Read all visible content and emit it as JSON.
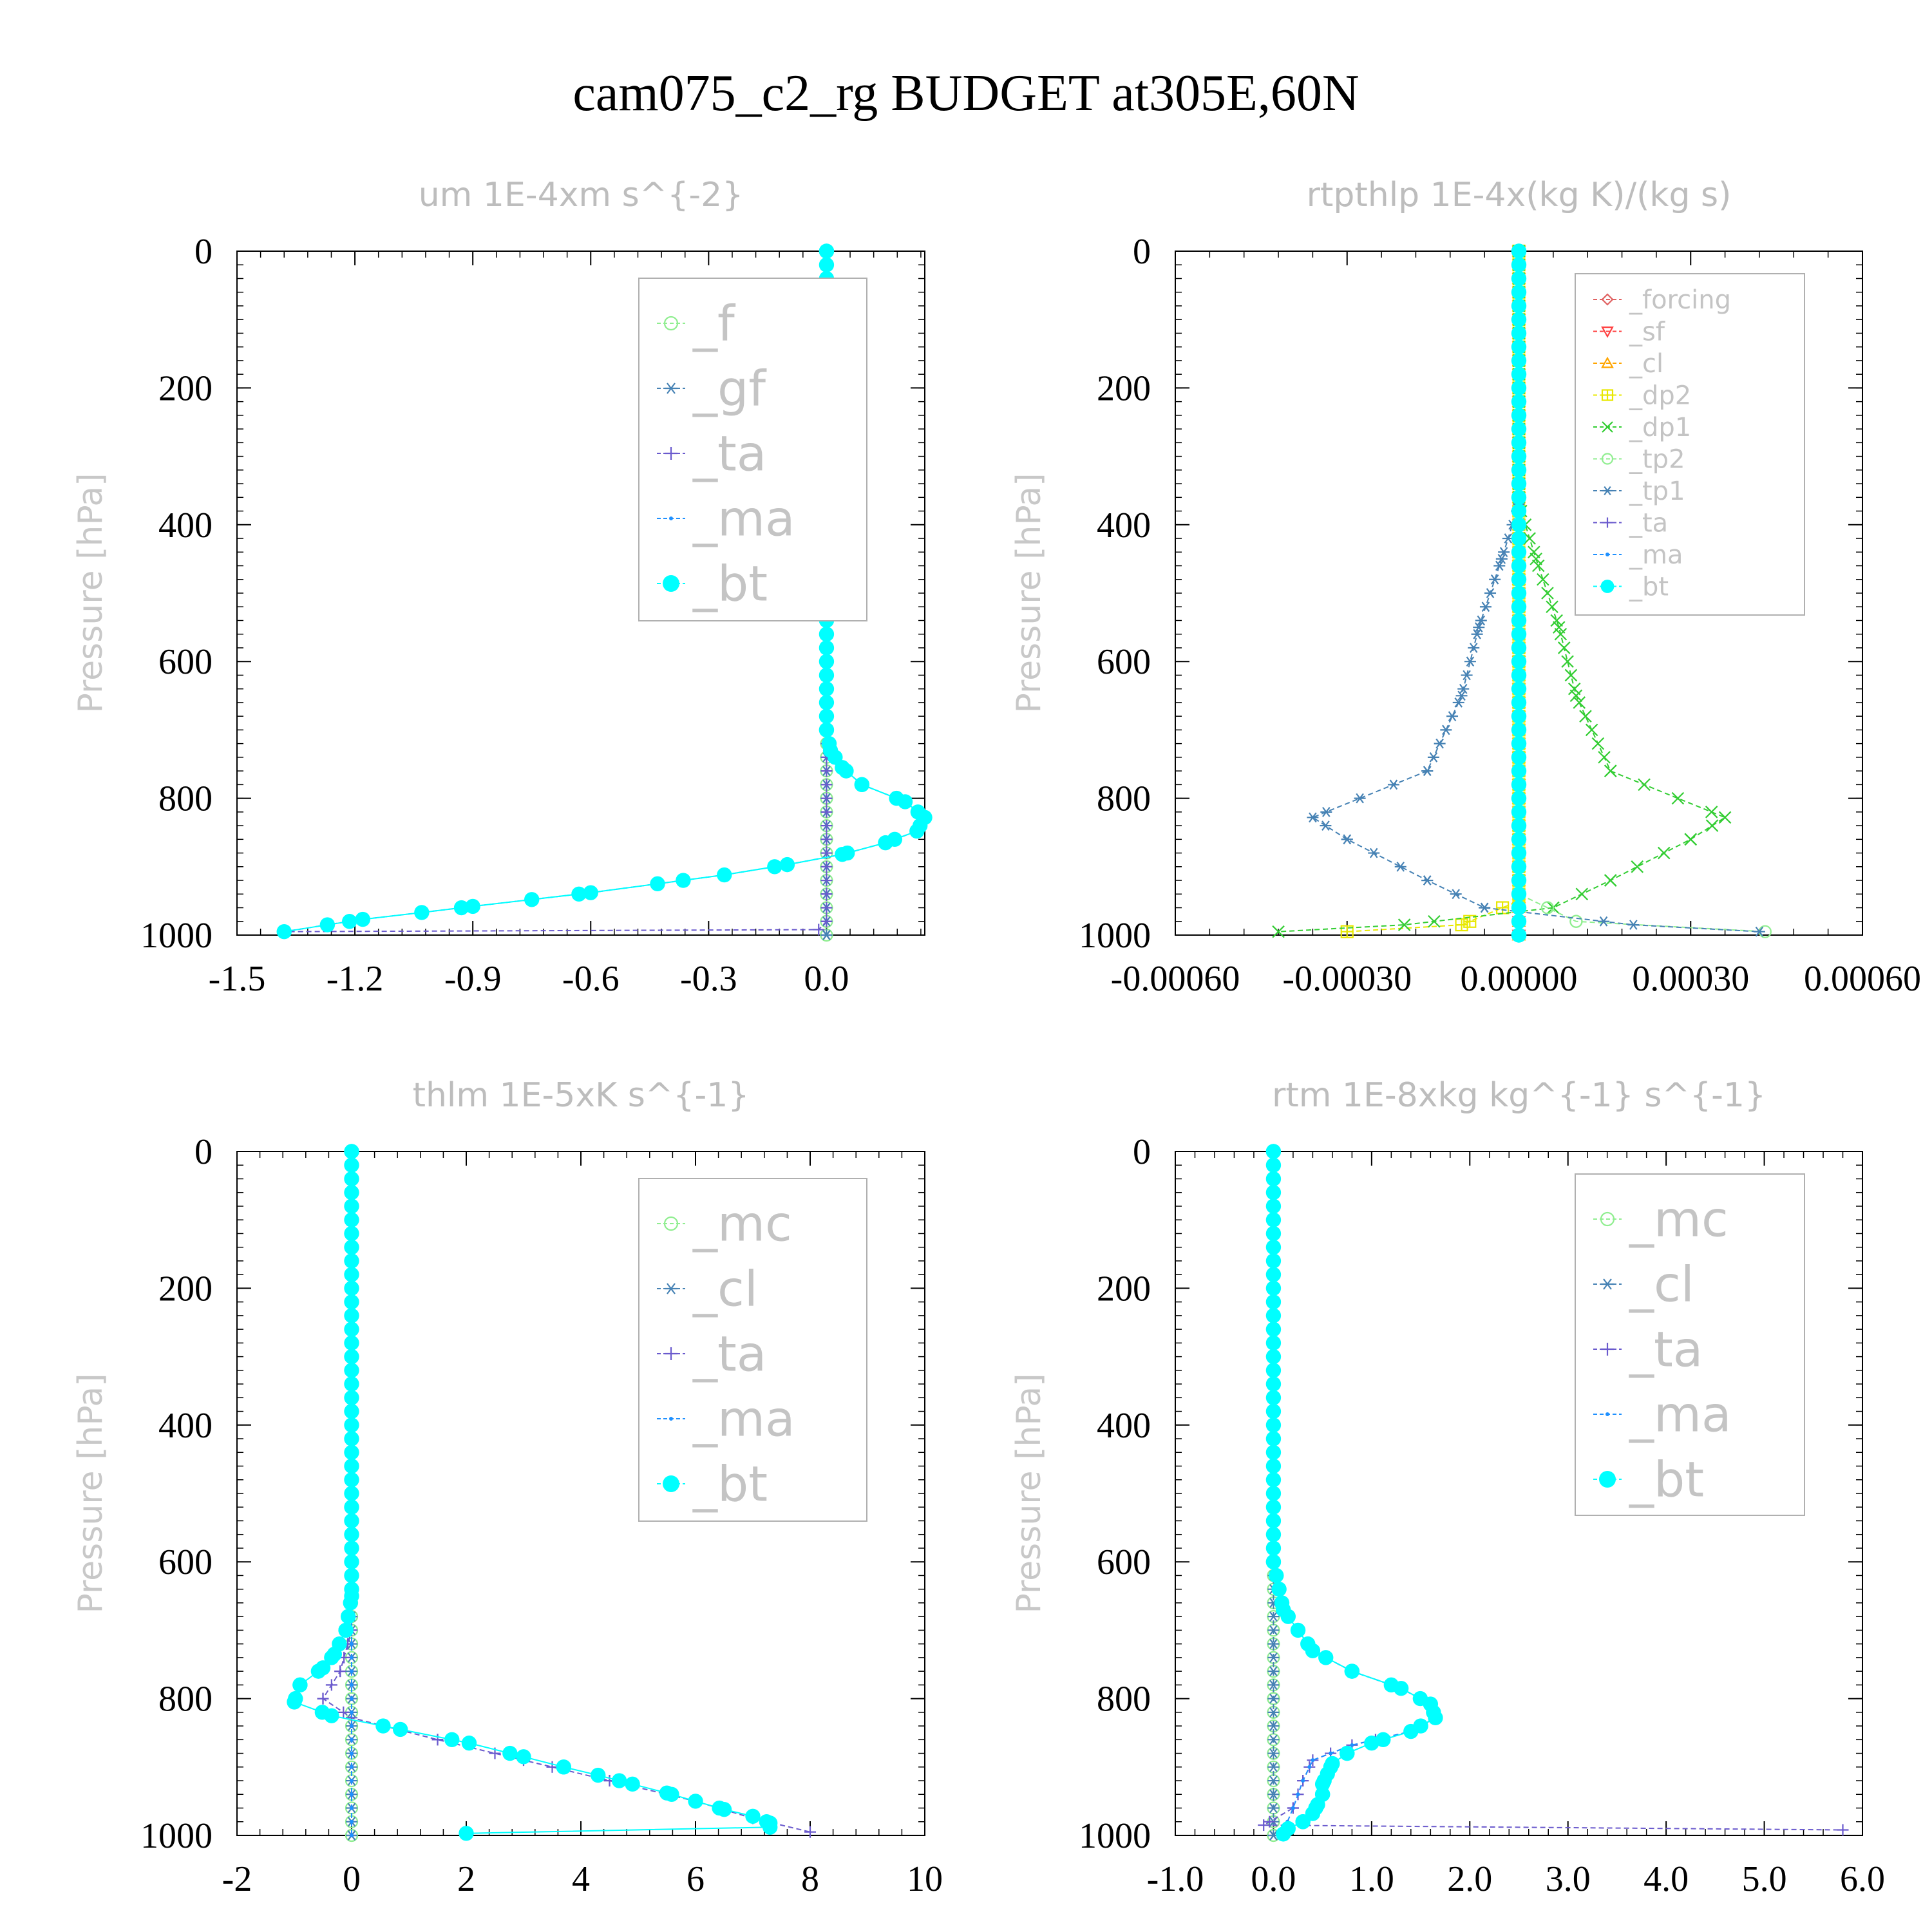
{
  "title": "cam075_c2_rg  BUDGET at305E,60N",
  "chart_data": [
    {
      "type": "line",
      "title": "um   1E-4xm s^{-2}",
      "ylabel": "Pressure [hPa]",
      "xlim": [
        -1.5,
        0.25
      ],
      "ylim": [
        1000,
        0
      ],
      "xticks": [
        "-1.5",
        "-1.2",
        "-0.9",
        "-0.6",
        "-0.3",
        "0.0"
      ],
      "xtick_values": [
        -1.5,
        -1.2,
        -0.9,
        -0.6,
        -0.3,
        0.0
      ],
      "yticks": [
        "0",
        "200",
        "400",
        "600",
        "800",
        "1000"
      ],
      "ytick_values": [
        0,
        200,
        400,
        600,
        800,
        1000
      ],
      "legend_position": "top-right",
      "series": [
        {
          "name": "_f",
          "color": "#90ee90",
          "marker": "circle",
          "points": [
            [
              0,
              0
            ],
            [
              0,
              200
            ],
            [
              0,
              400
            ],
            [
              0,
              600
            ],
            [
              0,
              800
            ],
            [
              0,
              1000
            ]
          ]
        },
        {
          "name": "_gf",
          "color": "#4682b4",
          "marker": "asterisk",
          "points": [
            [
              0,
              0
            ],
            [
              0,
              200
            ],
            [
              0,
              400
            ],
            [
              0,
              600
            ],
            [
              0,
              800
            ],
            [
              0,
              1000
            ]
          ]
        },
        {
          "name": "_ta",
          "color": "#6a5acd",
          "marker": "plus",
          "points": [
            [
              0,
              0
            ],
            [
              0,
              980
            ],
            [
              -0.02,
              992
            ],
            [
              -1.38,
              995
            ]
          ]
        },
        {
          "name": "_ma",
          "color": "#1e90ff",
          "marker": "dot",
          "points": [
            [
              0,
              0
            ],
            [
              0,
              700
            ],
            [
              0.01,
              730
            ],
            [
              0.04,
              755
            ],
            [
              0.09,
              780
            ],
            [
              0.2,
              805
            ],
            [
              0.25,
              828
            ],
            [
              0.23,
              848
            ],
            [
              0.15,
              865
            ],
            [
              0.04,
              882
            ],
            [
              -0.1,
              897
            ],
            [
              -0.26,
              912
            ],
            [
              -0.43,
              925
            ],
            [
              -0.6,
              938
            ],
            [
              -0.75,
              948
            ],
            [
              -0.9,
              958
            ],
            [
              -1.03,
              967
            ],
            [
              -1.18,
              977
            ],
            [
              -1.27,
              985
            ],
            [
              -1.38,
              995
            ]
          ]
        },
        {
          "name": "_bt",
          "color": "#00ffff",
          "marker": "filled-circle",
          "points": [
            [
              0,
              0
            ],
            [
              0,
              700
            ],
            [
              0.01,
              730
            ],
            [
              0.04,
              755
            ],
            [
              0.09,
              780
            ],
            [
              0.2,
              805
            ],
            [
              0.25,
              828
            ],
            [
              0.23,
              848
            ],
            [
              0.15,
              865
            ],
            [
              0.04,
              882
            ],
            [
              -0.1,
              897
            ],
            [
              -0.26,
              912
            ],
            [
              -0.43,
              925
            ],
            [
              -0.6,
              938
            ],
            [
              -0.75,
              948
            ],
            [
              -0.9,
              958
            ],
            [
              -1.03,
              967
            ],
            [
              -1.18,
              977
            ],
            [
              -1.27,
              985
            ],
            [
              -1.38,
              995
            ]
          ]
        }
      ]
    },
    {
      "type": "line",
      "title": "rtpthlp   1E-4x(kg K)/(kg s)",
      "ylabel": "Pressure [hPa]",
      "xlim": [
        -0.0006,
        0.0006
      ],
      "ylim": [
        1000,
        0
      ],
      "xticks": [
        "-0.00060",
        "-0.00030",
        "0.00000",
        "0.00030",
        "0.00060"
      ],
      "xtick_values": [
        -0.0006,
        -0.0003,
        0.0,
        0.0003,
        0.0006
      ],
      "yticks": [
        "0",
        "200",
        "400",
        "600",
        "800",
        "1000"
      ],
      "ytick_values": [
        0,
        200,
        400,
        600,
        800,
        1000
      ],
      "legend_position": "top-right",
      "series": [
        {
          "name": "_forcing",
          "color": "#e06060",
          "marker": "diamond",
          "points": [
            [
              0,
              0
            ],
            [
              0,
              1000
            ]
          ]
        },
        {
          "name": "_sf",
          "color": "#ff4040",
          "marker": "triangle-down",
          "points": [
            [
              0,
              0
            ],
            [
              0,
              1000
            ]
          ]
        },
        {
          "name": "_cl",
          "color": "#ffa500",
          "marker": "triangle",
          "points": [
            [
              0,
              0
            ],
            [
              0,
              1000
            ]
          ]
        },
        {
          "name": "_dp2",
          "color": "#e8e800",
          "marker": "square-plus",
          "points": [
            [
              0,
              0
            ],
            [
              0,
              950
            ],
            [
              -0.0001,
              985
            ],
            [
              -0.0003,
              995
            ]
          ]
        },
        {
          "name": "_dp1",
          "color": "#32cd32",
          "marker": "x",
          "points": [
            [
              0,
              0
            ],
            [
              0,
              370
            ],
            [
              3e-05,
              450
            ],
            [
              7e-05,
              550
            ],
            [
              0.0001,
              650
            ],
            [
              0.00016,
              760
            ],
            [
              0.00036,
              828
            ],
            [
              0.0003,
              860
            ],
            [
              0.00016,
              920
            ],
            [
              6e-05,
              960
            ],
            [
              -0.0002,
              985
            ],
            [
              -0.00042,
              995
            ]
          ]
        },
        {
          "name": "_tp2",
          "color": "#90ee90",
          "marker": "circle",
          "points": [
            [
              0,
              0
            ],
            [
              0,
              940
            ],
            [
              0.0001,
              980
            ],
            [
              0.00043,
              995
            ]
          ]
        },
        {
          "name": "_tp1",
          "color": "#4682b4",
          "marker": "asterisk",
          "points": [
            [
              0,
              0
            ],
            [
              0,
              370
            ],
            [
              -3e-05,
              450
            ],
            [
              -7e-05,
              550
            ],
            [
              -0.0001,
              650
            ],
            [
              -0.00016,
              760
            ],
            [
              -0.00036,
              828
            ],
            [
              -0.0003,
              860
            ],
            [
              -0.00016,
              920
            ],
            [
              -6e-05,
              960
            ],
            [
              0.0002,
              985
            ],
            [
              0.00042,
              995
            ]
          ]
        },
        {
          "name": "_ta",
          "color": "#6a5acd",
          "marker": "plus",
          "points": [
            [
              0,
              0
            ],
            [
              0,
              1000
            ]
          ]
        },
        {
          "name": "_ma",
          "color": "#1e90ff",
          "marker": "dot",
          "points": [
            [
              0,
              0
            ],
            [
              0,
              1000
            ]
          ]
        },
        {
          "name": "_bt",
          "color": "#00ffff",
          "marker": "filled-circle",
          "points": [
            [
              0,
              0
            ],
            [
              0,
              1000
            ]
          ]
        }
      ]
    },
    {
      "type": "line",
      "title": "thlm   1E-5xK s^{-1}",
      "ylabel": "Pressure [hPa]",
      "xlim": [
        -2,
        10
      ],
      "ylim": [
        1000,
        0
      ],
      "xticks": [
        "-2",
        "0",
        "2",
        "4",
        "6",
        "8",
        "10"
      ],
      "xtick_values": [
        -2,
        0,
        2,
        4,
        6,
        8,
        10
      ],
      "yticks": [
        "0",
        "200",
        "400",
        "600",
        "800",
        "1000"
      ],
      "ytick_values": [
        0,
        200,
        400,
        600,
        800,
        1000
      ],
      "legend_position": "top-right",
      "series": [
        {
          "name": "_mc",
          "color": "#90ee90",
          "marker": "circle",
          "points": [
            [
              0,
              0
            ],
            [
              0,
              200
            ],
            [
              0,
              400
            ],
            [
              0,
              600
            ],
            [
              0,
              800
            ],
            [
              0,
              1000
            ]
          ]
        },
        {
          "name": "_cl",
          "color": "#4682b4",
          "marker": "asterisk",
          "points": [
            [
              0,
              0
            ],
            [
              0,
              1000
            ]
          ]
        },
        {
          "name": "_ta",
          "color": "#6a5acd",
          "marker": "plus",
          "points": [
            [
              0,
              0
            ],
            [
              0,
              700
            ],
            [
              -0.2,
              760
            ],
            [
              -0.5,
              800
            ],
            [
              0,
              828
            ],
            [
              1.5,
              860
            ],
            [
              3,
              890
            ],
            [
              4.5,
              920
            ],
            [
              6,
              950
            ],
            [
              7,
              975
            ],
            [
              8,
              995
            ]
          ]
        },
        {
          "name": "_ma",
          "color": "#1e90ff",
          "marker": "dot",
          "points": [
            [
              0,
              0
            ],
            [
              0,
              1000
            ]
          ]
        },
        {
          "name": "_bt",
          "color": "#00ffff",
          "marker": "filled-circle",
          "points": [
            [
              0,
              0
            ],
            [
              0,
              650
            ],
            [
              -0.1,
              700
            ],
            [
              -0.3,
              735
            ],
            [
              -0.5,
              755
            ],
            [
              -0.9,
              780
            ],
            [
              -1.0,
              805
            ],
            [
              -0.35,
              825
            ],
            [
              0.85,
              845
            ],
            [
              2.05,
              865
            ],
            [
              3.0,
              885
            ],
            [
              3.7,
              900
            ],
            [
              4.3,
              912
            ],
            [
              4.9,
              925
            ],
            [
              5.5,
              938
            ],
            [
              6.0,
              950
            ],
            [
              6.5,
              962
            ],
            [
              7.0,
              972
            ],
            [
              7.3,
              982
            ],
            [
              7.3,
              988
            ],
            [
              2.0,
              997
            ]
          ]
        }
      ]
    },
    {
      "type": "line",
      "title": "rtm   1E-8xkg kg^{-1} s^{-1}",
      "ylabel": "Pressure [hPa]",
      "xlim": [
        -1.0,
        6.0
      ],
      "ylim": [
        1000,
        0
      ],
      "xticks": [
        "-1.0",
        "0.0",
        "1.0",
        "2.0",
        "3.0",
        "4.0",
        "5.0",
        "6.0"
      ],
      "xtick_values": [
        -1.0,
        0.0,
        1.0,
        2.0,
        3.0,
        4.0,
        5.0,
        6.0
      ],
      "yticks": [
        "0",
        "200",
        "400",
        "600",
        "800",
        "1000"
      ],
      "ytick_values": [
        0,
        200,
        400,
        600,
        800,
        1000
      ],
      "legend_position": "top-right",
      "series": [
        {
          "name": "_mc",
          "color": "#90ee90",
          "marker": "circle",
          "points": [
            [
              0,
              0
            ],
            [
              0,
              200
            ],
            [
              0,
              400
            ],
            [
              0,
              600
            ],
            [
              0,
              800
            ],
            [
              0,
              1000
            ]
          ]
        },
        {
          "name": "_cl",
          "color": "#4682b4",
          "marker": "asterisk",
          "points": [
            [
              0,
              0
            ],
            [
              0,
              1000
            ]
          ]
        },
        {
          "name": "_ta",
          "color": "#6a5acd",
          "marker": "plus",
          "points": [
            [
              0,
              0
            ],
            [
              0,
              600
            ],
            [
              0.1,
              670
            ],
            [
              0.4,
              730
            ],
            [
              0.8,
              760
            ],
            [
              1.3,
              785
            ],
            [
              1.6,
              808
            ],
            [
              1.65,
              828
            ],
            [
              1.4,
              848
            ],
            [
              0.8,
              868
            ],
            [
              0.4,
              890
            ],
            [
              0.3,
              920
            ],
            [
              0.2,
              960
            ],
            [
              -0.1,
              985
            ],
            [
              5.8,
              992
            ]
          ]
        },
        {
          "name": "_ma",
          "color": "#1e90ff",
          "marker": "dot",
          "points": [
            [
              0,
              0
            ],
            [
              0,
              600
            ],
            [
              0.1,
              670
            ],
            [
              0.4,
              730
            ],
            [
              0.8,
              760
            ],
            [
              1.3,
              785
            ],
            [
              1.6,
              808
            ],
            [
              1.65,
              828
            ],
            [
              1.4,
              848
            ],
            [
              0.8,
              868
            ],
            [
              0.4,
              890
            ],
            [
              0.3,
              920
            ],
            [
              0.2,
              960
            ],
            [
              0.1,
              995
            ]
          ]
        },
        {
          "name": "_bt",
          "color": "#00ffff",
          "marker": "filled-circle",
          "points": [
            [
              0,
              0
            ],
            [
              0,
              600
            ],
            [
              0.1,
              670
            ],
            [
              0.4,
              730
            ],
            [
              0.8,
              760
            ],
            [
              1.3,
              785
            ],
            [
              1.6,
              808
            ],
            [
              1.65,
              828
            ],
            [
              1.4,
              848
            ],
            [
              1.0,
              865
            ],
            [
              0.75,
              880
            ],
            [
              0.6,
              895
            ],
            [
              0.55,
              910
            ],
            [
              0.5,
              925
            ],
            [
              0.5,
              940
            ],
            [
              0.45,
              955
            ],
            [
              0.4,
              968
            ],
            [
              0.3,
              980
            ],
            [
              0.15,
              990
            ],
            [
              0.1,
              998
            ]
          ]
        }
      ]
    }
  ]
}
